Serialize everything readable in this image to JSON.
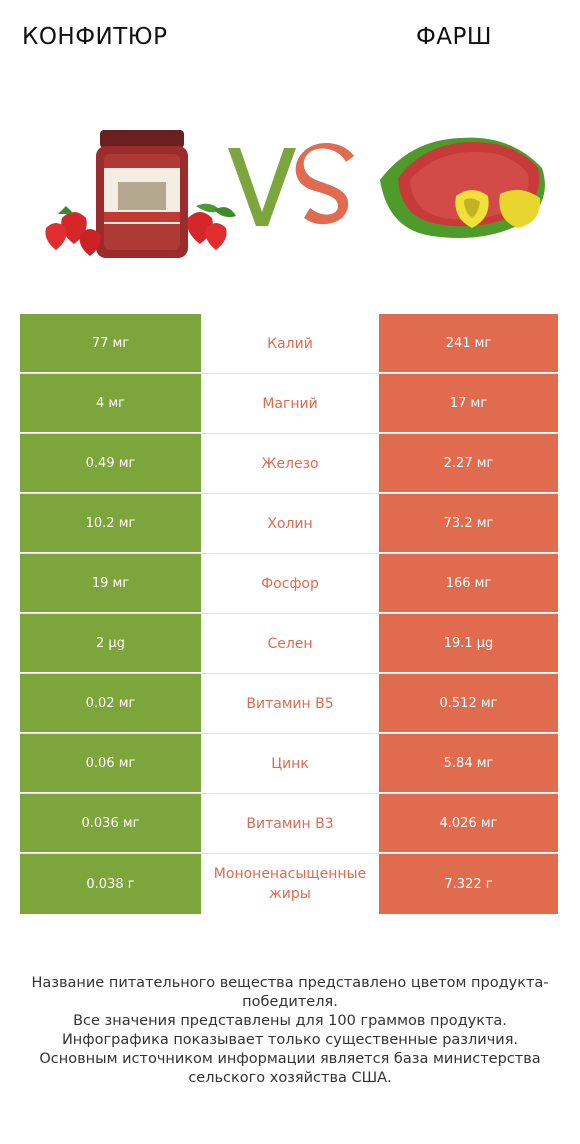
{
  "header": {
    "left_title": "КОНФИТЮР",
    "right_title": "ФАРШ",
    "vs_text": "VS"
  },
  "colors": {
    "left_winner": "#7ca63c",
    "right_winner": "#e06b4f"
  },
  "images": {
    "left": "jam-jar-with-strawberries",
    "right": "ground-meat-with-peppers"
  },
  "rows": [
    {
      "left": "77 мг",
      "nutrient": "Калий",
      "right": "241 мг"
    },
    {
      "left": "4 мг",
      "nutrient": "Магний",
      "right": "17 мг"
    },
    {
      "left": "0.49 мг",
      "nutrient": "Железо",
      "right": "2.27 мг"
    },
    {
      "left": "10.2 мг",
      "nutrient": "Холин",
      "right": "73.2 мг"
    },
    {
      "left": "19 мг",
      "nutrient": "Фосфор",
      "right": "166 мг"
    },
    {
      "left": "2 µg",
      "nutrient": "Селен",
      "right": "19.1 µg"
    },
    {
      "left": "0.02 мг",
      "nutrient": "Витамин B5",
      "right": "0.512 мг"
    },
    {
      "left": "0.06 мг",
      "nutrient": "Цинк",
      "right": "5.84 мг"
    },
    {
      "left": "0.036 мг",
      "nutrient": "Витамин B3",
      "right": "4.026 мг"
    },
    {
      "left": "0.038 г",
      "nutrient": "Мононенасыщенные жиры",
      "right": "7.322 г"
    }
  ],
  "footer": {
    "line1": "Название питательного вещества представлено цветом продукта-победителя.",
    "line2": "Все значения представлены для 100 граммов продукта.",
    "line3": "Инфографика показывает только существенные различия.",
    "line4": "Основным источником информации является база министерства сельского хозяйства США."
  }
}
